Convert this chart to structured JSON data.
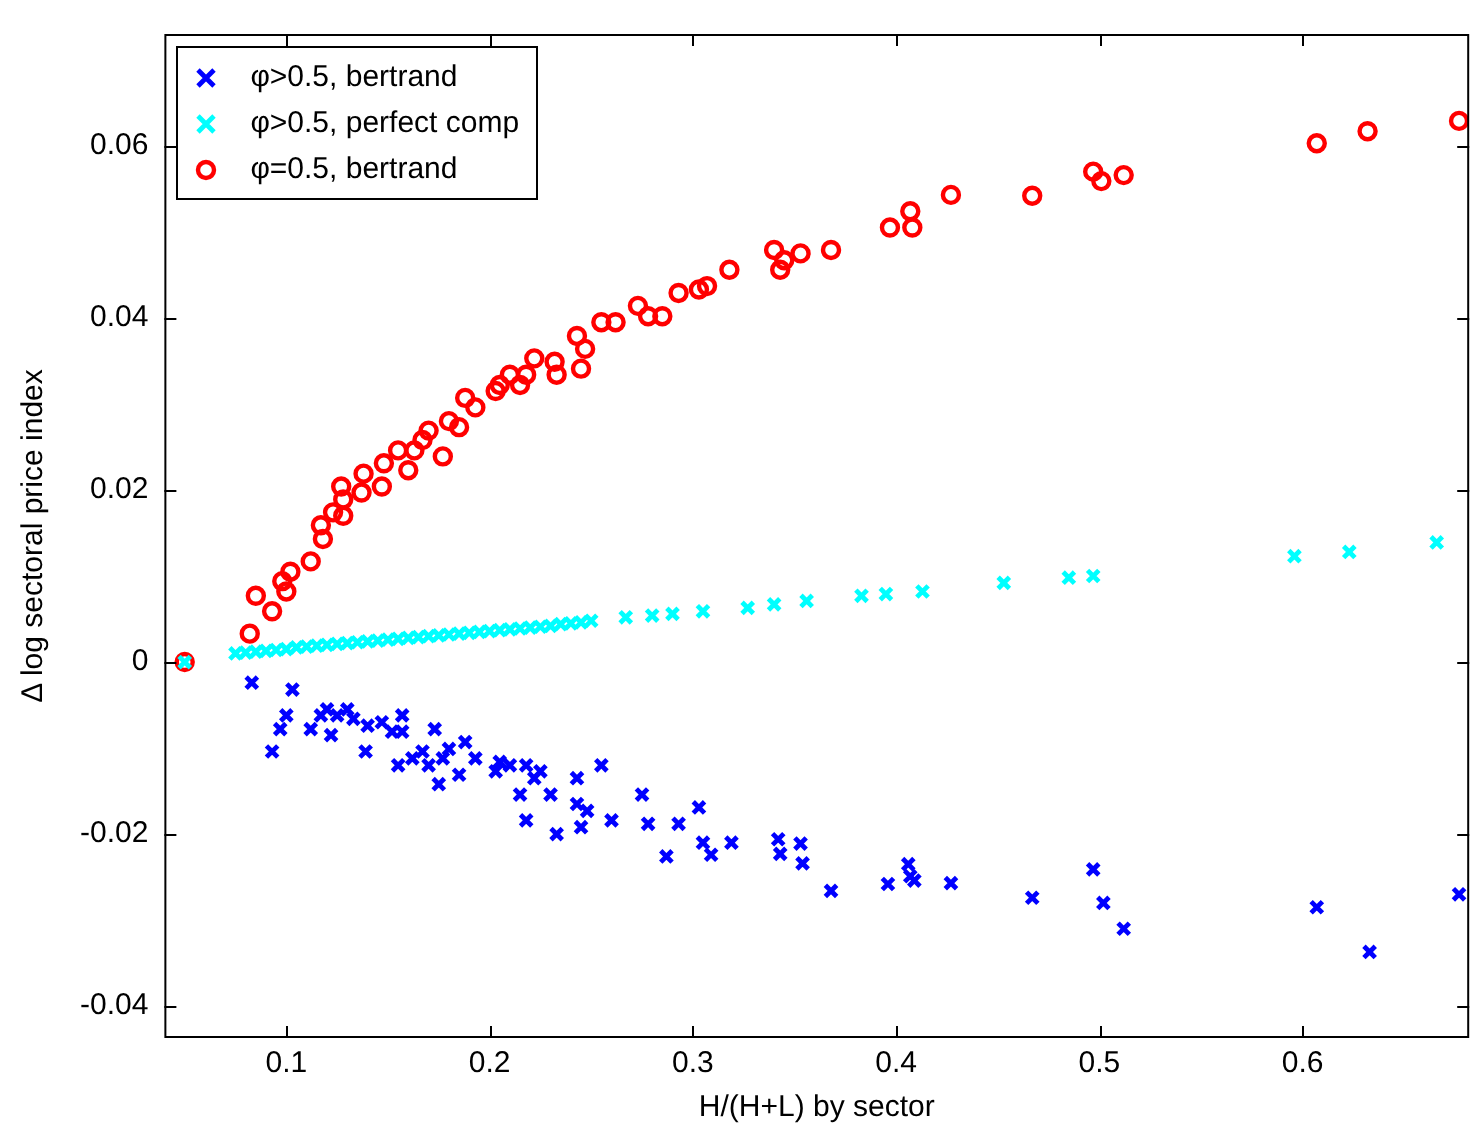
{
  "chart_data": {
    "type": "scatter",
    "xlabel": "H/(H+L) by sector",
    "ylabel": "Δ log sectoral price index",
    "xlim": [
      0.04,
      0.682
    ],
    "ylim": [
      -0.0437,
      0.073
    ],
    "xticks": [
      0.1,
      0.2,
      0.3,
      0.4,
      0.5,
      0.6
    ],
    "yticks": [
      -0.04,
      -0.02,
      0,
      0.02,
      0.04,
      0.06
    ],
    "grid": false,
    "legend": "top left",
    "series": [
      {
        "name": "φ>0.5, bertrand",
        "color": "#0000ff",
        "marker": "cross",
        "x": [
          0.083,
          0.103,
          0.1,
          0.097,
          0.093,
          0.112,
          0.12,
          0.117,
          0.125,
          0.122,
          0.13,
          0.133,
          0.14,
          0.139,
          0.147,
          0.152,
          0.157,
          0.157,
          0.155,
          0.162,
          0.167,
          0.173,
          0.17,
          0.177,
          0.18,
          0.175,
          0.185,
          0.188,
          0.193,
          0.203,
          0.205,
          0.21,
          0.218,
          0.222,
          0.215,
          0.218,
          0.225,
          0.23,
          0.233,
          0.243,
          0.243,
          0.248,
          0.245,
          0.255,
          0.26,
          0.275,
          0.278,
          0.287,
          0.293,
          0.303,
          0.305,
          0.309,
          0.319,
          0.342,
          0.343,
          0.353,
          0.354,
          0.368,
          0.396,
          0.406,
          0.407,
          0.409,
          0.427,
          0.467,
          0.497,
          0.502,
          0.512,
          0.607,
          0.633,
          0.677
        ],
        "values": [
          -0.0024,
          -0.0032,
          -0.0062,
          -0.0078,
          -0.0104,
          -0.0078,
          -0.0055,
          -0.0062,
          -0.0062,
          -0.0085,
          -0.0055,
          -0.0066,
          -0.0074,
          -0.0104,
          -0.007,
          -0.0081,
          -0.0062,
          -0.0081,
          -0.012,
          -0.0112,
          -0.0104,
          -0.0078,
          -0.012,
          -0.0112,
          -0.0101,
          -0.0142,
          -0.0131,
          -0.0093,
          -0.0112,
          -0.0127,
          -0.0116,
          -0.012,
          -0.012,
          -0.0135,
          -0.0154,
          -0.0184,
          -0.0127,
          -0.0154,
          -0.02,
          -0.0135,
          -0.0165,
          -0.0173,
          -0.0192,
          -0.012,
          -0.0184,
          -0.0154,
          -0.0188,
          -0.0226,
          -0.0188,
          -0.0169,
          -0.021,
          -0.0224,
          -0.021,
          -0.0206,
          -0.0223,
          -0.0211,
          -0.0234,
          -0.0266,
          -0.0258,
          -0.0235,
          -0.0249,
          -0.0254,
          -0.0257,
          -0.0274,
          -0.0241,
          -0.028,
          -0.031,
          -0.0285,
          -0.0337,
          -0.027
        ]
      },
      {
        "name": "φ>0.5, perfect comp",
        "color": "#00ffff",
        "marker": "cross",
        "x": [
          0.05,
          0.075,
          0.08,
          0.085,
          0.09,
          0.095,
          0.1,
          0.105,
          0.11,
          0.115,
          0.12,
          0.125,
          0.13,
          0.135,
          0.14,
          0.145,
          0.15,
          0.155,
          0.16,
          0.165,
          0.17,
          0.175,
          0.18,
          0.185,
          0.19,
          0.195,
          0.2,
          0.205,
          0.21,
          0.215,
          0.22,
          0.225,
          0.23,
          0.235,
          0.24,
          0.245,
          0.25,
          0.267,
          0.28,
          0.29,
          0.305,
          0.327,
          0.34,
          0.356,
          0.383,
          0.395,
          0.413,
          0.453,
          0.485,
          0.497,
          0.596,
          0.623,
          0.666
        ],
        "values": [
          0,
          0.001,
          0.0011,
          0.0012,
          0.0013,
          0.0014,
          0.0015,
          0.0017,
          0.0018,
          0.0019,
          0.002,
          0.0021,
          0.0022,
          0.0023,
          0.0024,
          0.0025,
          0.0026,
          0.0027,
          0.0028,
          0.0029,
          0.003,
          0.0031,
          0.0032,
          0.0033,
          0.0034,
          0.0035,
          0.0036,
          0.0037,
          0.0038,
          0.0039,
          0.004,
          0.0041,
          0.0042,
          0.0044,
          0.0045,
          0.0046,
          0.0048,
          0.0052,
          0.0054,
          0.0056,
          0.0059,
          0.0063,
          0.0067,
          0.0071,
          0.0077,
          0.0079,
          0.0082,
          0.0092,
          0.0098,
          0.01,
          0.0123,
          0.0128,
          0.0139
        ]
      },
      {
        "name": "φ=0.5, bertrand",
        "color": "#ff0000",
        "marker": "circle",
        "x": [
          0.05,
          0.082,
          0.085,
          0.093,
          0.1,
          0.102,
          0.098,
          0.112,
          0.117,
          0.118,
          0.123,
          0.128,
          0.127,
          0.128,
          0.137,
          0.138,
          0.147,
          0.148,
          0.155,
          0.16,
          0.163,
          0.167,
          0.17,
          0.177,
          0.18,
          0.185,
          0.193,
          0.188,
          0.203,
          0.205,
          0.21,
          0.215,
          0.218,
          0.222,
          0.233,
          0.232,
          0.245,
          0.247,
          0.243,
          0.255,
          0.262,
          0.278,
          0.273,
          0.285,
          0.293,
          0.307,
          0.303,
          0.318,
          0.343,
          0.353,
          0.34,
          0.345,
          0.368,
          0.397,
          0.407,
          0.408,
          0.427,
          0.467,
          0.497,
          0.501,
          0.512,
          0.607,
          0.632,
          0.677
        ],
        "values": [
          0,
          0.0033,
          0.0077,
          0.0059,
          0.0082,
          0.0105,
          0.0094,
          0.0117,
          0.0159,
          0.0143,
          0.0174,
          0.017,
          0.0204,
          0.0189,
          0.0197,
          0.0219,
          0.0204,
          0.0231,
          0.0246,
          0.0223,
          0.0246,
          0.0258,
          0.0269,
          0.0239,
          0.028,
          0.0273,
          0.0296,
          0.0307,
          0.0315,
          0.0322,
          0.0334,
          0.0322,
          0.0334,
          0.0353,
          0.0334,
          0.0349,
          0.0341,
          0.0364,
          0.0379,
          0.0395,
          0.0395,
          0.0402,
          0.0414,
          0.0402,
          0.0429,
          0.0437,
          0.0433,
          0.0456,
          0.0456,
          0.0475,
          0.0479,
          0.0467,
          0.0479,
          0.0505,
          0.0524,
          0.0505,
          0.0543,
          0.0542,
          0.057,
          0.0559,
          0.0566,
          0.0603,
          0.0617,
          0.0629
        ]
      }
    ]
  }
}
